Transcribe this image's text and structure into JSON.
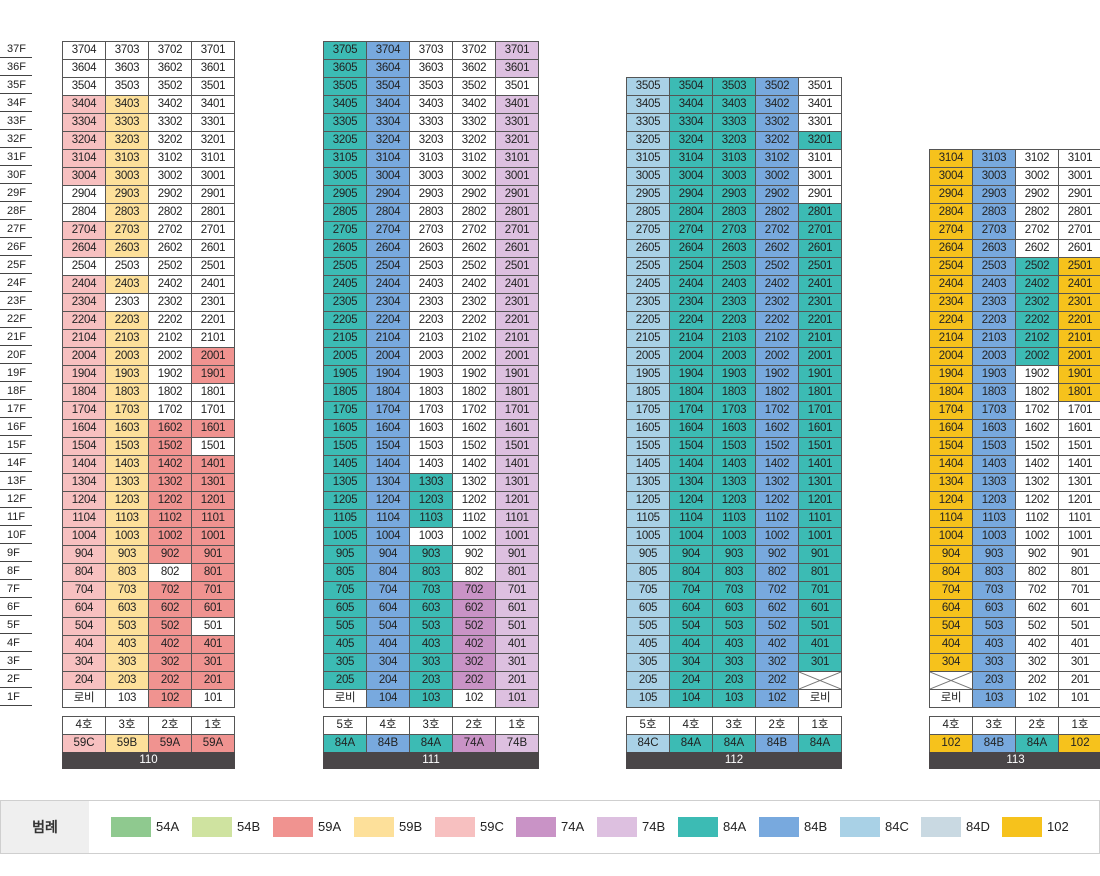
{
  "colors": {
    "54A": "#8fc98f",
    "54B": "#cfe3a0",
    "59A": "#f09390",
    "59B": "#fde09a",
    "59C": "#f7c0c0",
    "74A": "#c993c6",
    "74B": "#ddc0e0",
    "84A": "#3cbbb4",
    "84B": "#78a9de",
    "84C": "#a9d1e6",
    "84D": "#c9d9e2",
    "102": "#f6c21c"
  },
  "floors": [
    "37F",
    "36F",
    "35F",
    "34F",
    "33F",
    "32F",
    "31F",
    "30F",
    "29F",
    "28F",
    "27F",
    "26F",
    "25F",
    "24F",
    "23F",
    "22F",
    "21F",
    "20F",
    "19F",
    "18F",
    "17F",
    "16F",
    "15F",
    "14F",
    "13F",
    "12F",
    "11F",
    "10F",
    "9F",
    "8F",
    "7F",
    "6F",
    "5F",
    "4F",
    "3F",
    "2F",
    "1F"
  ],
  "legend": {
    "title": "범례",
    "items": [
      {
        "label": "54A",
        "color": "#8fc98f"
      },
      {
        "label": "54B",
        "color": "#cfe3a0"
      },
      {
        "label": "59A",
        "color": "#f09390"
      },
      {
        "label": "59B",
        "color": "#fde09a"
      },
      {
        "label": "59C",
        "color": "#f7c0c0"
      },
      {
        "label": "74A",
        "color": "#c993c6"
      },
      {
        "label": "74B",
        "color": "#ddc0e0"
      },
      {
        "label": "84A",
        "color": "#3cbbb4"
      },
      {
        "label": "84B",
        "color": "#78a9de"
      },
      {
        "label": "84C",
        "color": "#a9d1e6"
      },
      {
        "label": "84D",
        "color": "#c9d9e2"
      },
      {
        "label": "102",
        "color": "#f6c21c"
      }
    ]
  },
  "buildings": [
    {
      "name": "110",
      "top_floor": 37,
      "lines": [
        "4호",
        "3호",
        "2호",
        "1호"
      ],
      "types": [
        "59C",
        "59B",
        "59A",
        "59A"
      ],
      "lobby": {
        "label": "로비",
        "col": 0
      },
      "crossed": [],
      "default": [
        "",
        "",
        "",
        ""
      ],
      "typed": {
        "0": [
          3,
          4,
          5,
          6,
          7,
          10,
          11,
          13,
          14,
          15,
          16,
          17,
          18,
          19,
          20,
          21,
          22,
          23,
          24,
          25,
          26,
          27,
          28,
          29,
          30,
          31,
          32,
          33,
          34,
          35
        ],
        "1": [
          3,
          4,
          5,
          6,
          7,
          8,
          9,
          10,
          11,
          13,
          15,
          16,
          17,
          18,
          19,
          20,
          21,
          22,
          23,
          24,
          25,
          26,
          27,
          28,
          29,
          30,
          31,
          32,
          33,
          34,
          35
        ],
        "2": [
          21,
          22,
          23,
          24,
          25,
          26,
          27,
          28,
          30,
          31,
          32,
          33,
          34,
          35,
          36
        ],
        "3": [
          17,
          18,
          21,
          23,
          24,
          25,
          26,
          27,
          28,
          29,
          30,
          31,
          33,
          34,
          35
        ]
      }
    },
    {
      "name": "111",
      "top_floor": 37,
      "lines": [
        "5호",
        "4호",
        "3호",
        "2호",
        "1호"
      ],
      "types": [
        "84A",
        "84B",
        "84A",
        "74A",
        "74B"
      ],
      "lobby": {
        "label": "로비",
        "col": 0
      },
      "crossed": [],
      "typed": {
        "0": "all",
        "1": "all",
        "2": [
          24,
          25,
          26,
          28,
          29,
          30,
          31,
          32,
          33,
          34,
          35,
          36
        ],
        "3": [
          30,
          31,
          32,
          33,
          34,
          35
        ],
        "4": [
          0,
          1,
          3,
          4,
          5,
          6,
          7,
          8,
          9,
          10,
          11,
          12,
          13,
          14,
          15,
          16,
          17,
          18,
          19,
          20,
          21,
          22,
          23,
          24,
          25,
          26,
          27,
          28,
          29,
          30,
          31,
          32,
          33,
          34,
          35,
          36
        ]
      }
    },
    {
      "name": "112",
      "top_floor": 35,
      "lines": [
        "5호",
        "4호",
        "3호",
        "2호",
        "1호"
      ],
      "types": [
        "84C",
        "84A",
        "84A",
        "84B",
        "84A"
      ],
      "lobby": {
        "label": "로비",
        "col": 4
      },
      "crossed": [
        {
          "floor": 2,
          "col": 4
        }
      ],
      "typed": {
        "0": "all",
        "1": "all",
        "2": "all",
        "3": "all",
        "4": [
          3,
          7,
          8,
          9,
          10,
          11,
          12,
          13,
          14,
          15,
          16,
          17,
          18,
          19,
          20,
          21,
          22,
          23,
          24,
          25,
          26,
          27,
          28,
          29,
          30,
          31,
          32,
          33
        ]
      }
    },
    {
      "name": "113",
      "top_floor": 31,
      "lines": [
        "4호",
        "3호",
        "2호",
        "1호"
      ],
      "types": [
        "102",
        "84B",
        "84A",
        "102"
      ],
      "lobby": {
        "label": "로비",
        "col": 0
      },
      "crossed": [
        {
          "floor": 2,
          "col": 0
        }
      ],
      "typed": {
        "0": "all",
        "1": "all",
        "2": [
          6,
          7,
          8,
          9,
          10,
          11
        ],
        "3": [
          6,
          7,
          8,
          9,
          10,
          11,
          12,
          13
        ]
      }
    }
  ]
}
